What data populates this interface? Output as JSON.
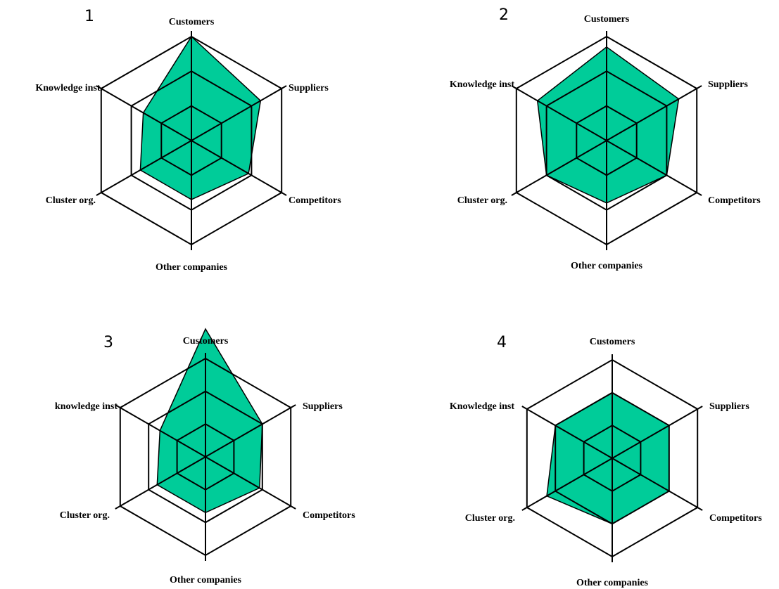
{
  "colors": {
    "fill": "#00CC99",
    "line": "#000000"
  },
  "chart_data": [
    {
      "type": "radar",
      "number": "1",
      "axes": [
        "Customers",
        "Suppliers",
        "Competitors",
        "Other companies",
        "Cluster org.",
        "Knowledge inst."
      ],
      "rmax": 3,
      "rings": [
        1,
        2,
        3
      ],
      "values": [
        3,
        2.3,
        1.9,
        1.7,
        1.7,
        1.6
      ]
    },
    {
      "type": "radar",
      "number": "2",
      "axes": [
        "Customers",
        "Suppliers",
        "Competitors",
        "Other companies",
        "Cluster org.",
        "Knowledge inst"
      ],
      "rmax": 3,
      "rings": [
        1,
        2,
        3
      ],
      "values": [
        2.7,
        2.4,
        2.0,
        1.8,
        2.0,
        2.3
      ]
    },
    {
      "type": "radar",
      "number": "3",
      "axes": [
        "Customers",
        "Suppliers",
        "Competitors",
        "Other companies",
        "Cluster org.",
        "knowledge inst"
      ],
      "rmax": 3,
      "rings": [
        1,
        2,
        3
      ],
      "values": [
        3.9,
        2.0,
        1.9,
        1.7,
        1.7,
        1.6
      ]
    },
    {
      "type": "radar",
      "number": "4",
      "axes": [
        "Customers",
        "Suppliers",
        "Competitors",
        "Other companies",
        "Cluster org.",
        "Knowledge inst"
      ],
      "rmax": 3,
      "rings": [
        1,
        2,
        3
      ],
      "values": [
        2.0,
        2.0,
        2.0,
        2.0,
        2.3,
        2.0
      ]
    }
  ]
}
